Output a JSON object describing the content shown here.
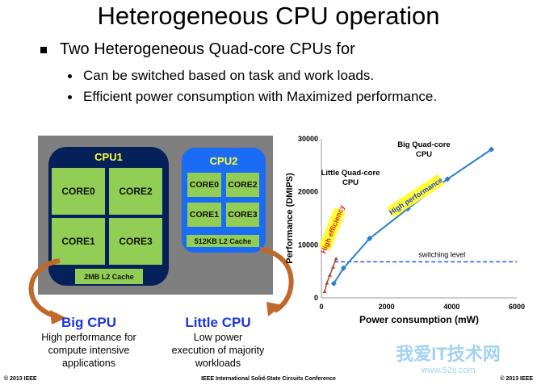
{
  "title": "Heterogeneous CPU operation",
  "bullets": {
    "main": "Two Heterogeneous Quad-core CPUs for",
    "sub": [
      "Can be switched based on task and work loads.",
      "Efficient power consumption with Maximized performance."
    ]
  },
  "cpu1": {
    "title": "CPU1",
    "cores": [
      "CORE0",
      "CORE2",
      "CORE1",
      "CORE3"
    ],
    "cache": "2MB L2 Cache",
    "color": "#06215a"
  },
  "cpu2": {
    "title": "CPU2",
    "cores": [
      "CORE0",
      "CORE2",
      "CORE1",
      "CORE3"
    ],
    "cache": "512KB L2 Cache",
    "color": "#1a6cf5"
  },
  "big": {
    "heading": "Big CPU",
    "desc": [
      "High performance for",
      "compute intensive",
      "applications"
    ]
  },
  "little": {
    "heading": "Little CPU",
    "desc": [
      "Low power",
      "execution of majority",
      "workloads"
    ]
  },
  "footer": {
    "left": "© 2013 IEEE",
    "center": "IEEE International Solid-State Circuits Conference",
    "right": "© 2013 IEEE"
  },
  "watermark": {
    "text": "我爱IT技术网",
    "url": "www.52ij.com"
  },
  "chart_data": {
    "type": "line",
    "xlabel": "Power consumption (mW)",
    "ylabel": "Performance (DMIPS)",
    "xlim": [
      0,
      6000
    ],
    "ylim": [
      0,
      30000
    ],
    "xticks": [
      "0",
      "2000",
      "4000",
      "6000"
    ],
    "yticks": [
      "0",
      "10000",
      "20000",
      "30000"
    ],
    "series": [
      {
        "name": "Big Quad-core CPU",
        "color": "#2a7fd0",
        "x": [
          380,
          680,
          1480,
          2650,
          3870,
          5220
        ],
        "y": [
          2700,
          5600,
          11200,
          16800,
          22400,
          28000
        ]
      },
      {
        "name": "Little Quad-core CPU",
        "color": "#c0392b",
        "x": [
          100,
          170,
          260,
          360,
          450
        ],
        "y": [
          1200,
          2800,
          4300,
          5800,
          7400
        ]
      }
    ],
    "switching": {
      "label": "switching level",
      "y": 6800,
      "color": "#2a50ff"
    },
    "annotations": {
      "big": [
        "Big Quad-core",
        "CPU"
      ],
      "little": [
        "Little Quad-core",
        "CPU"
      ],
      "high_efficiency": "High efficiency",
      "high_performance": "High performance"
    }
  }
}
